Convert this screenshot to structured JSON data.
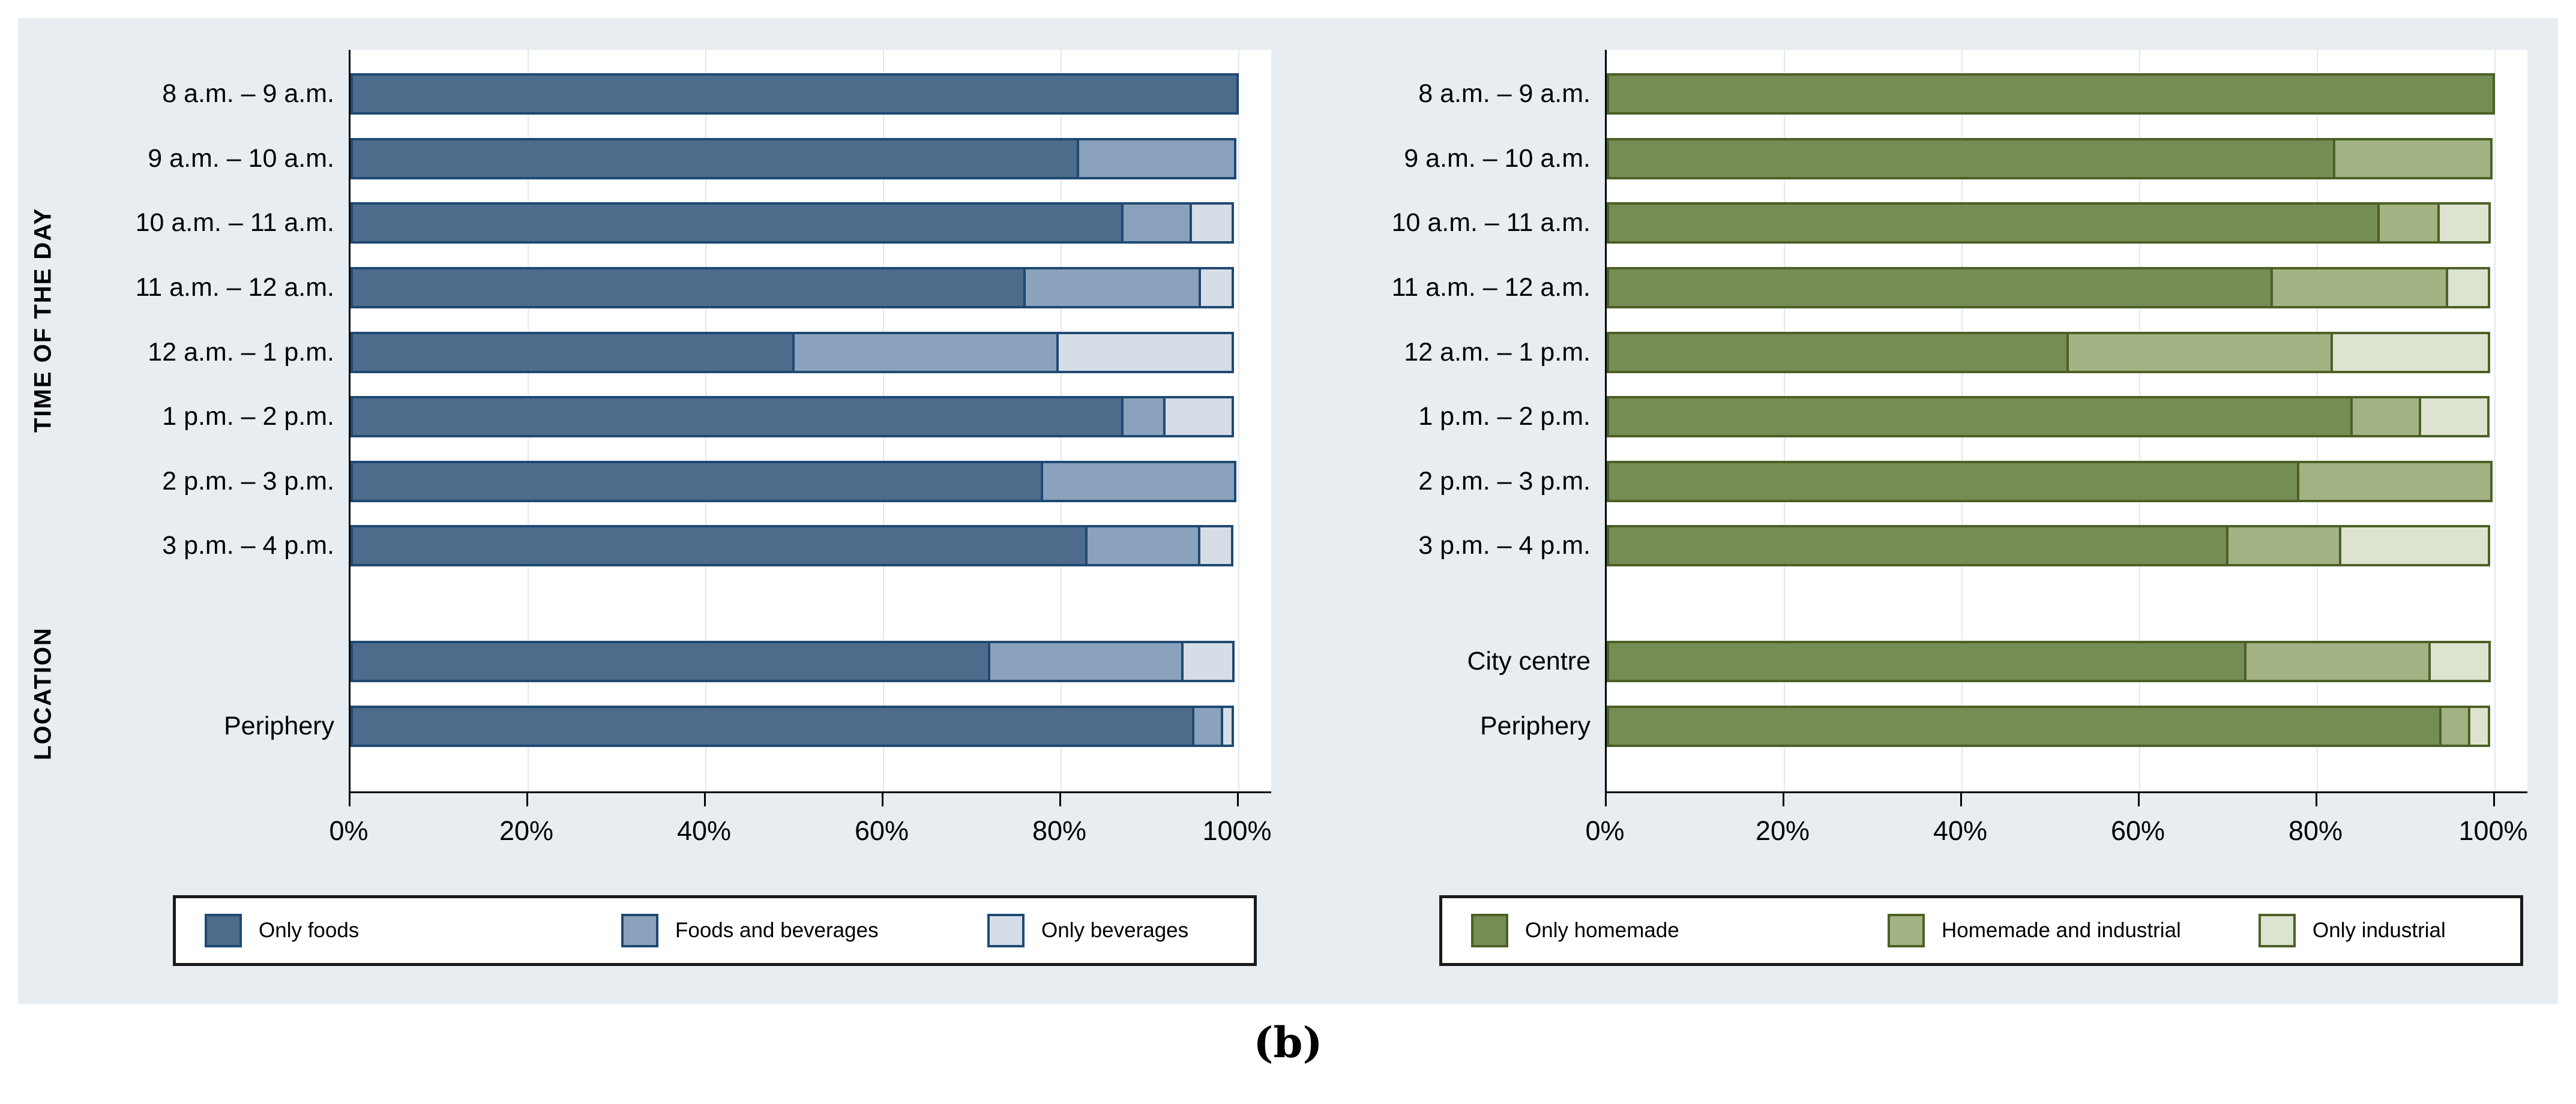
{
  "caption": "(b)",
  "axis": {
    "tick_labels": [
      "0%",
      "20%",
      "40%",
      "60%",
      "80%",
      "100%"
    ],
    "group_titles": [
      "TIME OF THE DAY",
      "LOCATION"
    ]
  },
  "chart_data": [
    {
      "type": "bar",
      "orientation": "horizontal-stacked",
      "title": "",
      "xlabel": "",
      "ylabel": "TIME OF THE DAY / LOCATION",
      "xlim": [
        0,
        100
      ],
      "grid": true,
      "legend_position": "bottom",
      "colors": [
        "#4d6c8c",
        "#8aa2bb",
        "#d6dde7"
      ],
      "segment_border_color": "#1f4972",
      "series_names": [
        "Only foods",
        "Foods and beverages",
        "Only beverages"
      ],
      "rows": [
        {
          "label": "8 a.m. – 9 a.m.",
          "group": "time",
          "values": [
            100,
            0,
            0
          ]
        },
        {
          "label": "9 a.m. – 10 a.m.",
          "group": "time",
          "values": [
            82,
            18,
            0
          ]
        },
        {
          "label": "10 a.m. – 11 a.m.",
          "group": "time",
          "values": [
            87,
            8,
            5
          ]
        },
        {
          "label": "11 a.m. – 12 a.m.",
          "group": "time",
          "values": [
            76,
            20,
            4
          ]
        },
        {
          "label": "12 a.m. – 1 p.m.",
          "group": "time",
          "values": [
            50,
            30,
            20
          ]
        },
        {
          "label": "1 p.m. – 2 p.m.",
          "group": "time",
          "values": [
            87,
            5,
            8
          ]
        },
        {
          "label": "2 p.m. – 3 p.m.",
          "group": "time",
          "values": [
            78,
            22,
            0
          ]
        },
        {
          "label": "3 p.m. – 4 p.m.",
          "group": "time",
          "values": [
            83,
            13,
            4
          ]
        },
        {
          "label": "",
          "group": "location",
          "values": [
            72,
            22,
            6
          ]
        },
        {
          "label": "Periphery",
          "group": "location",
          "values": [
            95,
            3.5,
            1.5
          ]
        }
      ]
    },
    {
      "type": "bar",
      "orientation": "horizontal-stacked",
      "title": "",
      "xlabel": "",
      "ylabel": "",
      "xlim": [
        0,
        100
      ],
      "grid": true,
      "legend_position": "bottom",
      "colors": [
        "#758c54",
        "#a2b282",
        "#dde3d1"
      ],
      "segment_border_color": "#4c6026",
      "series_names": [
        "Only homemade",
        "Homemade and industrial",
        "Only industrial"
      ],
      "rows": [
        {
          "label": "8 a.m. – 9 a.m.",
          "group": "time",
          "values": [
            100,
            0,
            0
          ]
        },
        {
          "label": "9 a.m. – 10 a.m.",
          "group": "time",
          "values": [
            82,
            18,
            0
          ]
        },
        {
          "label": "10 a.m. – 11 a.m.",
          "group": "time",
          "values": [
            87,
            7,
            6
          ]
        },
        {
          "label": "11 a.m. – 12 a.m.",
          "group": "time",
          "values": [
            75,
            20,
            5
          ]
        },
        {
          "label": "12 a.m. – 1 p.m.",
          "group": "time",
          "values": [
            52,
            30,
            18
          ]
        },
        {
          "label": "1 p.m. – 2 p.m.",
          "group": "time",
          "values": [
            84,
            8,
            8
          ]
        },
        {
          "label": "2 p.m. – 3 p.m.",
          "group": "time",
          "values": [
            78,
            22,
            0
          ]
        },
        {
          "label": "3 p.m. – 4 p.m.",
          "group": "time",
          "values": [
            70,
            13,
            17
          ]
        },
        {
          "label": "City centre",
          "group": "location",
          "values": [
            72,
            21,
            7
          ]
        },
        {
          "label": "Periphery",
          "group": "location",
          "values": [
            94,
            3.5,
            2.5
          ]
        }
      ]
    }
  ],
  "style_colors": {
    "panel_background": "#e7edf1",
    "plot_background": "#ffffff",
    "gridline": "#dfe9f1",
    "axis": "#000000"
  }
}
